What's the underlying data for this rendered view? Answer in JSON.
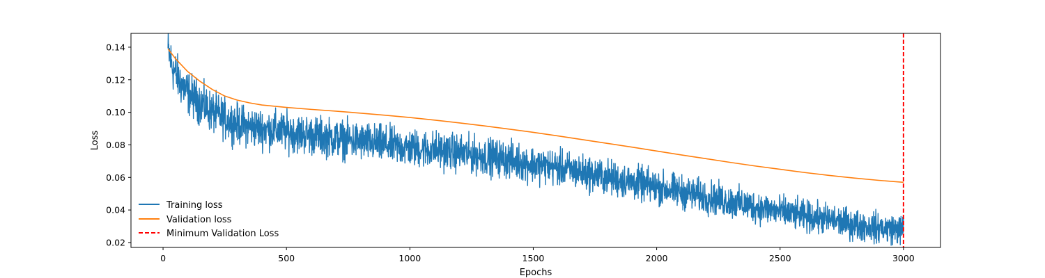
{
  "chart_data": {
    "type": "line",
    "title": "",
    "xlabel": "Epochs",
    "ylabel": "Loss",
    "xlim": [
      -130,
      3150
    ],
    "ylim": [
      0.017,
      0.1485
    ],
    "xticks": [
      0,
      500,
      1000,
      1500,
      2000,
      2500,
      3000
    ],
    "xtick_labels": [
      "0",
      "500",
      "1000",
      "1500",
      "2000",
      "2500",
      "3000"
    ],
    "yticks": [
      0.02,
      0.04,
      0.06,
      0.08,
      0.1,
      0.12,
      0.14
    ],
    "ytick_labels": [
      "0.02",
      "0.04",
      "0.06",
      "0.08",
      "0.10",
      "0.12",
      "0.14"
    ],
    "grid": false,
    "legend_position": "lower-left",
    "series": [
      {
        "name": "Training loss",
        "color": "#1f77b4",
        "style": "solid",
        "noisy": true,
        "x": [
          20,
          40,
          60,
          80,
          100,
          150,
          200,
          250,
          300,
          350,
          400,
          500,
          600,
          700,
          800,
          900,
          1000,
          1100,
          1200,
          1300,
          1400,
          1500,
          1600,
          1700,
          1800,
          1900,
          2000,
          2100,
          2200,
          2300,
          2400,
          2500,
          2600,
          2700,
          2800,
          2900,
          3000
        ],
        "y": [
          0.138,
          0.127,
          0.121,
          0.116,
          0.112,
          0.106,
          0.1,
          0.096,
          0.093,
          0.091,
          0.09,
          0.088,
          0.086,
          0.084,
          0.082,
          0.08,
          0.078,
          0.077,
          0.075,
          0.073,
          0.071,
          0.068,
          0.066,
          0.063,
          0.06,
          0.057,
          0.054,
          0.051,
          0.048,
          0.045,
          0.042,
          0.039,
          0.036,
          0.034,
          0.031,
          0.029,
          0.028
        ]
      },
      {
        "name": "Validation loss",
        "color": "#ff7f0e",
        "style": "solid",
        "noisy": false,
        "x": [
          20,
          50,
          100,
          150,
          200,
          250,
          300,
          350,
          400,
          500,
          600,
          700,
          800,
          900,
          1000,
          1100,
          1200,
          1300,
          1400,
          1500,
          1600,
          1700,
          1800,
          1900,
          2000,
          2100,
          2200,
          2300,
          2400,
          2500,
          2600,
          2700,
          2800,
          2900,
          3000
        ],
        "y": [
          0.139,
          0.133,
          0.125,
          0.119,
          0.114,
          0.11,
          0.1075,
          0.1058,
          0.1045,
          0.103,
          0.1018,
          0.1007,
          0.0995,
          0.0982,
          0.0968,
          0.0952,
          0.0935,
          0.0917,
          0.0897,
          0.0877,
          0.0855,
          0.0832,
          0.0809,
          0.0786,
          0.0762,
          0.0738,
          0.0715,
          0.0692,
          0.067,
          0.065,
          0.063,
          0.0612,
          0.0596,
          0.0582,
          0.057
        ]
      }
    ],
    "vline": {
      "name": "Minimum Validation Loss",
      "x": 3000,
      "color": "#ff0000",
      "style": "dashed"
    }
  }
}
